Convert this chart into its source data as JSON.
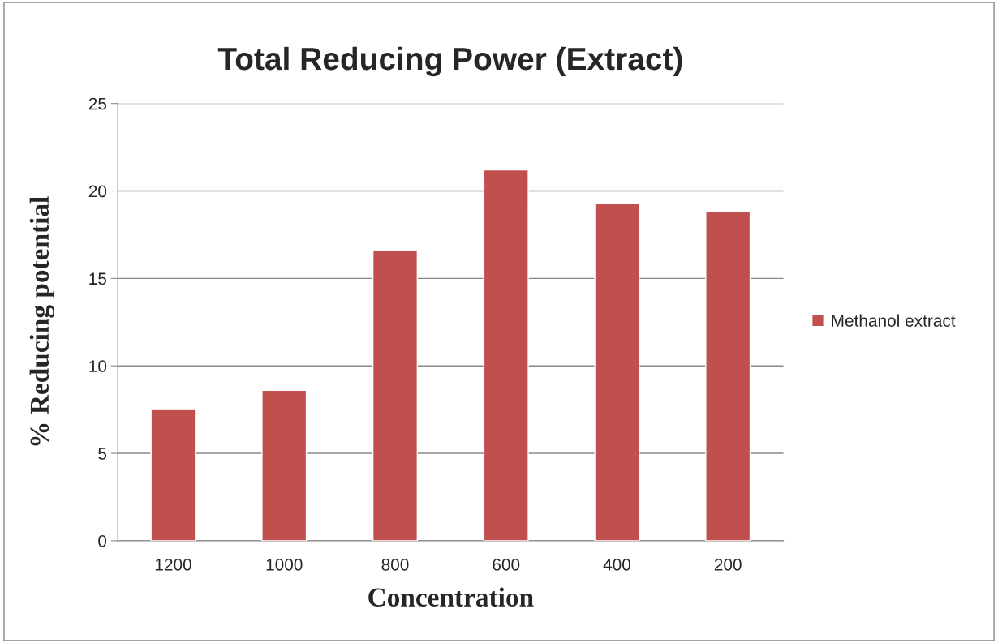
{
  "chart_data": {
    "type": "bar",
    "title": "Total Reducing Power (Extract)",
    "xlabel": "Concentration",
    "ylabel": "% Reducing potential",
    "categories": [
      "1200",
      "1000",
      "800",
      "600",
      "400",
      "200"
    ],
    "series": [
      {
        "name": "Methanol extract",
        "color": "#c0504d",
        "values": [
          7.5,
          8.6,
          16.6,
          21.2,
          19.3,
          18.8
        ]
      }
    ],
    "ylim": [
      0,
      25
    ],
    "yticks": [
      0,
      5,
      10,
      15,
      20,
      25
    ],
    "grid": "y",
    "legend": "right"
  }
}
